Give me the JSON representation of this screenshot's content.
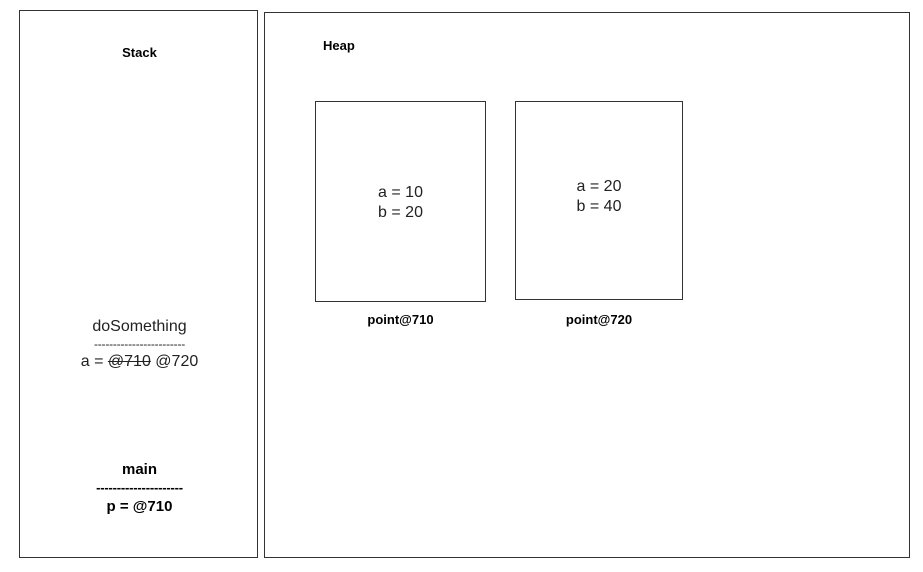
{
  "stack": {
    "title": "Stack",
    "frames": [
      {
        "name": "doSomething",
        "separator": "------------------------",
        "var_prefix": "a = ",
        "old_value": "@710",
        "new_value": "@720"
      },
      {
        "name": "main",
        "separator": "---------------------",
        "var_text": "p = @710"
      }
    ]
  },
  "heap": {
    "title": "Heap",
    "objects": [
      {
        "label": "point@710",
        "field_a": "a = 10",
        "field_b": "b = 20"
      },
      {
        "label": "point@720",
        "field_a": "a = 20",
        "field_b": "b = 40"
      }
    ]
  }
}
